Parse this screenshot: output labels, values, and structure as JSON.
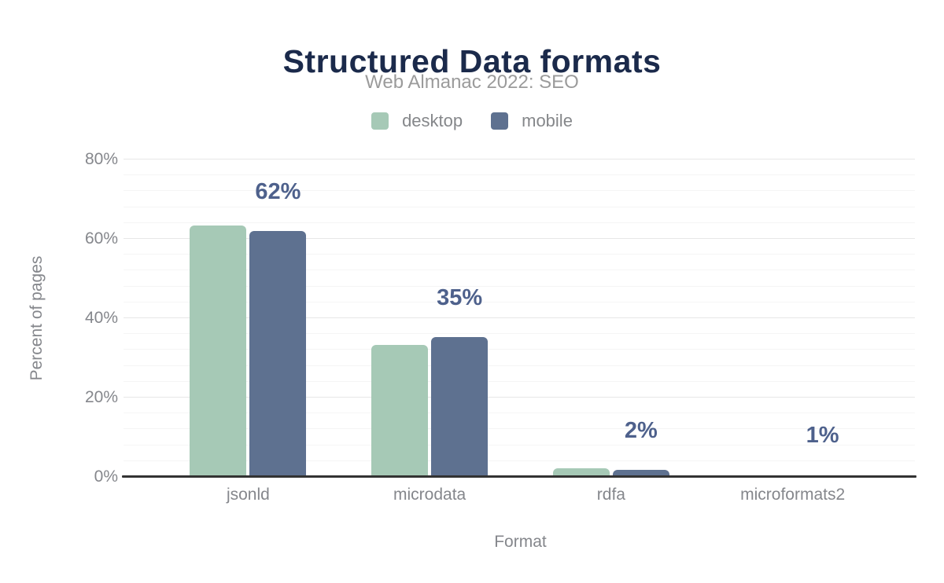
{
  "chart_data": {
    "type": "bar",
    "title": "Structured Data formats",
    "subtitle": "Web Almanac 2022: SEO",
    "xlabel": "Format",
    "ylabel": "Percent of pages",
    "ylim": [
      0,
      80
    ],
    "yticks": [
      0,
      20,
      40,
      60,
      80
    ],
    "ytick_labels": [
      "0%",
      "20%",
      "40%",
      "60%",
      "80%"
    ],
    "minor_grid_step": 4,
    "grid": true,
    "legend_position": "top",
    "categories": [
      "jsonld",
      "microdata",
      "rdfa",
      "microformats2"
    ],
    "series": [
      {
        "name": "desktop",
        "color": "#a6c9b6",
        "values": [
          63.4,
          33.2,
          2.2,
          0.1
        ]
      },
      {
        "name": "mobile",
        "color": "#5e7190",
        "values": [
          61.9,
          35.2,
          1.7,
          0.5
        ]
      }
    ],
    "value_labels": [
      "62%",
      "35%",
      "2%",
      "1%"
    ],
    "value_labels_series": "mobile"
  },
  "colors": {
    "title": "#1b2a4b",
    "subtitle": "#9b9b9b",
    "legend_text": "#85878a",
    "axis_text": "#85878c",
    "value_label": "#4e618c",
    "axis_line": "#333333",
    "gridline_minor": "#f5f5f5",
    "gridline_major": "#e7e7e7",
    "background": "#ffffff"
  }
}
